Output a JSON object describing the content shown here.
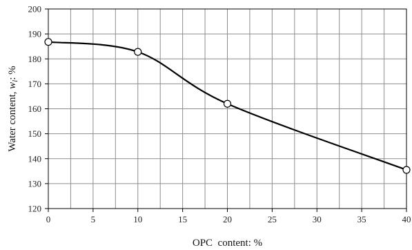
{
  "chart_data": {
    "type": "line",
    "title": "",
    "xlabel": "OPC  content: %",
    "ylabel_prefix": "Water content, ",
    "ylabel_symbol": "w",
    "ylabel_subscript": "l",
    "ylabel_suffix": ": %",
    "xlim": [
      0,
      40
    ],
    "ylim": [
      120,
      200
    ],
    "x_ticks": [
      0,
      5,
      10,
      15,
      20,
      25,
      30,
      35,
      40
    ],
    "y_ticks": [
      120,
      130,
      140,
      150,
      160,
      170,
      180,
      190,
      200
    ],
    "x_minor_step": 2.5,
    "grid": true,
    "smooth": true,
    "legend": "none",
    "series": [
      {
        "x": [
          0,
          10,
          20,
          40
        ],
        "y": [
          186.8,
          182.8,
          162.0,
          135.5
        ],
        "marker": "open-circle",
        "line_color": "#000000"
      }
    ]
  }
}
